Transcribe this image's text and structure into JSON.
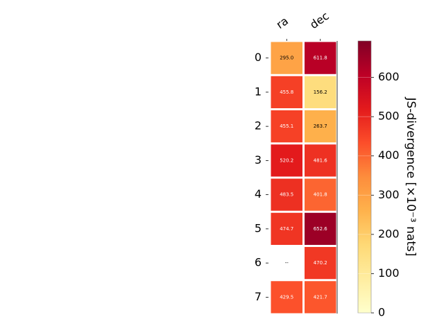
{
  "chart_data": {
    "type": "heatmap",
    "title": "",
    "columns": [
      "ra",
      "dec"
    ],
    "rows": [
      "0",
      "1",
      "2",
      "3",
      "4",
      "5",
      "6",
      "7"
    ],
    "values": [
      [
        295.0,
        611.8
      ],
      [
        455.8,
        156.2
      ],
      [
        455.1,
        263.7
      ],
      [
        520.2,
        481.6
      ],
      [
        483.5,
        401.8
      ],
      [
        474.7,
        652.6
      ],
      [
        null,
        470.2
      ],
      [
        429.5,
        421.7
      ]
    ],
    "cell_labels": [
      [
        "295.0",
        "611.8"
      ],
      [
        "455.8",
        "156.2"
      ],
      [
        "455.1",
        "263.7"
      ],
      [
        "520.2",
        "481.6"
      ],
      [
        "483.5",
        "401.8"
      ],
      [
        "474.7",
        "652.6"
      ],
      [
        "--",
        "470.2"
      ],
      [
        "429.5",
        "421.7"
      ]
    ],
    "colorbar": {
      "label": "JS-divergence [×10⁻³ nats]",
      "ticks": [
        "0",
        "100",
        "200",
        "300",
        "400",
        "500",
        "600"
      ],
      "range": [
        0,
        693
      ],
      "colormap": "YlOrRd"
    }
  }
}
